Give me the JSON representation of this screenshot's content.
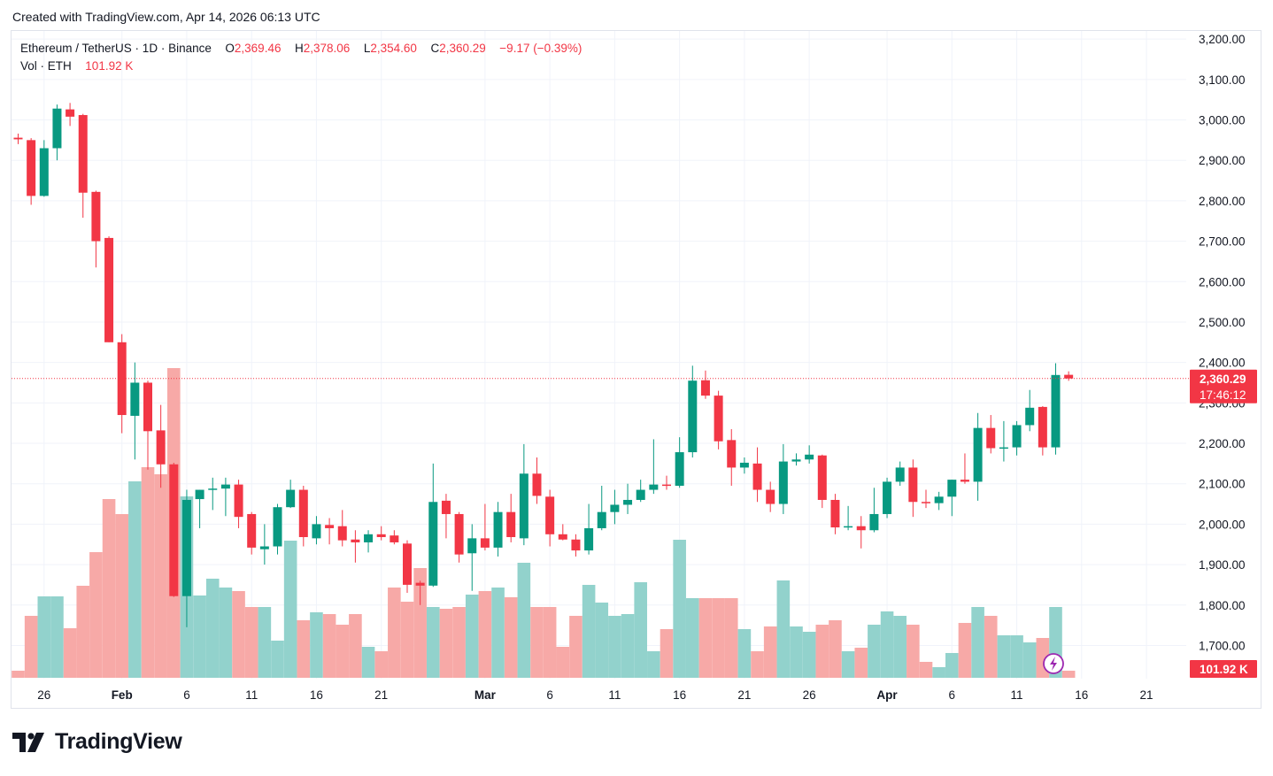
{
  "header": {
    "created_text": "Created with TradingView.com, Apr 14, 2026 06:13 UTC"
  },
  "legend": {
    "symbol": "Ethereum / TetherUS · 1D · Binance",
    "o_label": "O",
    "o_value": "2,369.46",
    "h_label": "H",
    "h_value": "2,378.06",
    "l_label": "L",
    "l_value": "2,354.60",
    "c_label": "C",
    "c_value": "2,360.29",
    "change": "−9.17 (−0.39%)",
    "vol_label": "Vol · ETH",
    "vol_value": "101.92 K"
  },
  "brand": {
    "name": "TradingView"
  },
  "colors": {
    "up": "#089981",
    "down": "#f23645",
    "up_vol": "#92d2cc",
    "down_vol": "#f7a9a7",
    "grid": "#f0f3fa",
    "text": "#131722"
  },
  "chart_data": {
    "type": "candlestick",
    "title": "Ethereum / TetherUS · 1D · Binance",
    "ylim": [
      1620,
      3220
    ],
    "y_ticks": [
      {
        "value": 3200,
        "label": "3,200.00"
      },
      {
        "value": 3100,
        "label": "3,100.00"
      },
      {
        "value": 3000,
        "label": "3,000.00"
      },
      {
        "value": 2900,
        "label": "2,900.00"
      },
      {
        "value": 2800,
        "label": "2,800.00"
      },
      {
        "value": 2700,
        "label": "2,700.00"
      },
      {
        "value": 2600,
        "label": "2,600.00"
      },
      {
        "value": 2500,
        "label": "2,500.00"
      },
      {
        "value": 2400,
        "label": "2,400.00"
      },
      {
        "value": 2300,
        "label": "2,300.00"
      },
      {
        "value": 2200,
        "label": "2,200.00"
      },
      {
        "value": 2100,
        "label": "2,100.00"
      },
      {
        "value": 2000,
        "label": "2,000.00"
      },
      {
        "value": 1900,
        "label": "1,900.00"
      },
      {
        "value": 1800,
        "label": "1,800.00"
      },
      {
        "value": 1700,
        "label": "1,700.00"
      }
    ],
    "x_ticks": [
      {
        "index": 2,
        "label": "26"
      },
      {
        "index": 8,
        "label": "Feb"
      },
      {
        "index": 13,
        "label": "6"
      },
      {
        "index": 18,
        "label": "11"
      },
      {
        "index": 23,
        "label": "16"
      },
      {
        "index": 28,
        "label": "21"
      },
      {
        "index": 36,
        "label": "Mar"
      },
      {
        "index": 41,
        "label": "6"
      },
      {
        "index": 46,
        "label": "11"
      },
      {
        "index": 51,
        "label": "16"
      },
      {
        "index": 56,
        "label": "21"
      },
      {
        "index": 61,
        "label": "26"
      },
      {
        "index": 67,
        "label": "Apr"
      },
      {
        "index": 72,
        "label": "6"
      },
      {
        "index": 77,
        "label": "11"
      },
      {
        "index": 82,
        "label": "16"
      },
      {
        "index": 87,
        "label": "21"
      }
    ],
    "last_price": {
      "value": 2360.29,
      "label": "2,360.29",
      "countdown": "17:46:12"
    },
    "last_volume": {
      "label": "101.92 K"
    },
    "volume_max": 140,
    "candles": [
      {
        "o": 2956,
        "h": 2966,
        "l": 2940,
        "c": 2952,
        "v": 8
      },
      {
        "o": 2950,
        "h": 2955,
        "l": 2790,
        "c": 2812,
        "v": 70
      },
      {
        "o": 2812,
        "h": 2950,
        "l": 2810,
        "c": 2930,
        "v": 92
      },
      {
        "o": 2930,
        "h": 3038,
        "l": 2900,
        "c": 3028,
        "v": 92
      },
      {
        "o": 3026,
        "h": 3042,
        "l": 2985,
        "c": 3008,
        "v": 56
      },
      {
        "o": 3012,
        "h": 3015,
        "l": 2758,
        "c": 2820,
        "v": 104
      },
      {
        "o": 2822,
        "h": 2825,
        "l": 2635,
        "c": 2700,
        "v": 142
      },
      {
        "o": 2708,
        "h": 2712,
        "l": 2450,
        "c": 2450,
        "v": 202
      },
      {
        "o": 2450,
        "h": 2470,
        "l": 2225,
        "c": 2270,
        "v": 185
      },
      {
        "o": 2268,
        "h": 2400,
        "l": 2160,
        "c": 2350,
        "v": 222
      },
      {
        "o": 2350,
        "h": 2355,
        "l": 2135,
        "c": 2230,
        "v": 238
      },
      {
        "o": 2232,
        "h": 2295,
        "l": 2090,
        "c": 2148,
        "v": 230
      },
      {
        "o": 2148,
        "h": 2152,
        "l": 1820,
        "c": 1822,
        "v": 350
      },
      {
        "o": 1822,
        "h": 2085,
        "l": 1745,
        "c": 2060,
        "v": 205
      },
      {
        "o": 2062,
        "h": 2085,
        "l": 1990,
        "c": 2085,
        "v": 93
      },
      {
        "o": 2085,
        "h": 2115,
        "l": 2035,
        "c": 2088,
        "v": 112
      },
      {
        "o": 2088,
        "h": 2115,
        "l": 2020,
        "c": 2098,
        "v": 102
      },
      {
        "o": 2098,
        "h": 2110,
        "l": 1990,
        "c": 2018,
        "v": 98
      },
      {
        "o": 2025,
        "h": 2030,
        "l": 1925,
        "c": 1942,
        "v": 80
      },
      {
        "o": 1938,
        "h": 2000,
        "l": 1900,
        "c": 1945,
        "v": 80
      },
      {
        "o": 1945,
        "h": 2050,
        "l": 1925,
        "c": 2042,
        "v": 42
      },
      {
        "o": 2042,
        "h": 2110,
        "l": 2040,
        "c": 2085,
        "v": 155
      },
      {
        "o": 2085,
        "h": 2095,
        "l": 1945,
        "c": 1968,
        "v": 65
      },
      {
        "o": 1965,
        "h": 2020,
        "l": 1950,
        "c": 2000,
        "v": 74
      },
      {
        "o": 1998,
        "h": 2015,
        "l": 1950,
        "c": 1990,
        "v": 72
      },
      {
        "o": 1995,
        "h": 2035,
        "l": 1945,
        "c": 1960,
        "v": 60
      },
      {
        "o": 1962,
        "h": 1985,
        "l": 1905,
        "c": 1955,
        "v": 72
      },
      {
        "o": 1955,
        "h": 1985,
        "l": 1930,
        "c": 1975,
        "v": 35
      },
      {
        "o": 1975,
        "h": 1995,
        "l": 1960,
        "c": 1968,
        "v": 30
      },
      {
        "o": 1972,
        "h": 1985,
        "l": 1950,
        "c": 1955,
        "v": 102
      },
      {
        "o": 1952,
        "h": 1960,
        "l": 1830,
        "c": 1850,
        "v": 86
      },
      {
        "o": 1855,
        "h": 1860,
        "l": 1800,
        "c": 1848,
        "v": 124
      },
      {
        "o": 1848,
        "h": 2150,
        "l": 1845,
        "c": 2055,
        "v": 80
      },
      {
        "o": 2058,
        "h": 2075,
        "l": 1965,
        "c": 2025,
        "v": 78
      },
      {
        "o": 2025,
        "h": 2030,
        "l": 1905,
        "c": 1925,
        "v": 80
      },
      {
        "o": 1928,
        "h": 2000,
        "l": 1835,
        "c": 1965,
        "v": 94
      },
      {
        "o": 1965,
        "h": 2050,
        "l": 1935,
        "c": 1942,
        "v": 98
      },
      {
        "o": 1942,
        "h": 2055,
        "l": 1920,
        "c": 2030,
        "v": 102
      },
      {
        "o": 2030,
        "h": 2075,
        "l": 1955,
        "c": 1968,
        "v": 91
      },
      {
        "o": 1965,
        "h": 2198,
        "l": 1948,
        "c": 2125,
        "v": 130
      },
      {
        "o": 2125,
        "h": 2165,
        "l": 2050,
        "c": 2070,
        "v": 80
      },
      {
        "o": 2068,
        "h": 2085,
        "l": 1945,
        "c": 1975,
        "v": 80
      },
      {
        "o": 1975,
        "h": 2000,
        "l": 1960,
        "c": 1962,
        "v": 35
      },
      {
        "o": 1962,
        "h": 1975,
        "l": 1920,
        "c": 1935,
        "v": 70
      },
      {
        "o": 1935,
        "h": 2050,
        "l": 1925,
        "c": 1990,
        "v": 105
      },
      {
        "o": 1990,
        "h": 2095,
        "l": 1985,
        "c": 2030,
        "v": 85
      },
      {
        "o": 2030,
        "h": 2085,
        "l": 2000,
        "c": 2048,
        "v": 70
      },
      {
        "o": 2048,
        "h": 2100,
        "l": 2025,
        "c": 2060,
        "v": 72
      },
      {
        "o": 2060,
        "h": 2110,
        "l": 2055,
        "c": 2085,
        "v": 108
      },
      {
        "o": 2085,
        "h": 2210,
        "l": 2075,
        "c": 2098,
        "v": 30
      },
      {
        "o": 2098,
        "h": 2120,
        "l": 2085,
        "c": 2095,
        "v": 55
      },
      {
        "o": 2095,
        "h": 2215,
        "l": 2090,
        "c": 2178,
        "v": 156
      },
      {
        "o": 2178,
        "h": 2392,
        "l": 2165,
        "c": 2355,
        "v": 90
      },
      {
        "o": 2356,
        "h": 2380,
        "l": 2310,
        "c": 2318,
        "v": 90
      },
      {
        "o": 2318,
        "h": 2330,
        "l": 2185,
        "c": 2205,
        "v": 90
      },
      {
        "o": 2208,
        "h": 2235,
        "l": 2095,
        "c": 2140,
        "v": 90
      },
      {
        "o": 2140,
        "h": 2165,
        "l": 2125,
        "c": 2152,
        "v": 55
      },
      {
        "o": 2150,
        "h": 2190,
        "l": 2055,
        "c": 2085,
        "v": 30
      },
      {
        "o": 2085,
        "h": 2105,
        "l": 2030,
        "c": 2050,
        "v": 58
      },
      {
        "o": 2050,
        "h": 2198,
        "l": 2025,
        "c": 2155,
        "v": 110
      },
      {
        "o": 2155,
        "h": 2175,
        "l": 2145,
        "c": 2160,
        "v": 58
      },
      {
        "o": 2160,
        "h": 2195,
        "l": 2150,
        "c": 2172,
        "v": 52
      },
      {
        "o": 2170,
        "h": 2172,
        "l": 2040,
        "c": 2060,
        "v": 60
      },
      {
        "o": 2060,
        "h": 2075,
        "l": 1975,
        "c": 1992,
        "v": 65
      },
      {
        "o": 1992,
        "h": 2045,
        "l": 1985,
        "c": 1995,
        "v": 30
      },
      {
        "o": 1995,
        "h": 2020,
        "l": 1940,
        "c": 1985,
        "v": 34
      },
      {
        "o": 1985,
        "h": 2090,
        "l": 1980,
        "c": 2025,
        "v": 60
      },
      {
        "o": 2025,
        "h": 2115,
        "l": 2015,
        "c": 2105,
        "v": 75
      },
      {
        "o": 2105,
        "h": 2155,
        "l": 2095,
        "c": 2140,
        "v": 70
      },
      {
        "o": 2140,
        "h": 2160,
        "l": 2018,
        "c": 2055,
        "v": 60
      },
      {
        "o": 2055,
        "h": 2085,
        "l": 2040,
        "c": 2052,
        "v": 18
      },
      {
        "o": 2052,
        "h": 2080,
        "l": 2035,
        "c": 2068,
        "v": 12
      },
      {
        "o": 2068,
        "h": 2110,
        "l": 2020,
        "c": 2110,
        "v": 28
      },
      {
        "o": 2110,
        "h": 2175,
        "l": 2100,
        "c": 2105,
        "v": 62
      },
      {
        "o": 2105,
        "h": 2275,
        "l": 2058,
        "c": 2238,
        "v": 80
      },
      {
        "o": 2238,
        "h": 2270,
        "l": 2175,
        "c": 2188,
        "v": 70
      },
      {
        "o": 2188,
        "h": 2255,
        "l": 2155,
        "c": 2190,
        "v": 48
      },
      {
        "o": 2190,
        "h": 2255,
        "l": 2170,
        "c": 2245,
        "v": 48
      },
      {
        "o": 2245,
        "h": 2332,
        "l": 2230,
        "c": 2288,
        "v": 40
      },
      {
        "o": 2290,
        "h": 2292,
        "l": 2170,
        "c": 2190,
        "v": 45
      },
      {
        "o": 2190,
        "h": 2398,
        "l": 2172,
        "c": 2369,
        "v": 80
      },
      {
        "o": 2369.46,
        "h": 2378.06,
        "l": 2354.6,
        "c": 2360.29,
        "v": 8
      }
    ]
  }
}
